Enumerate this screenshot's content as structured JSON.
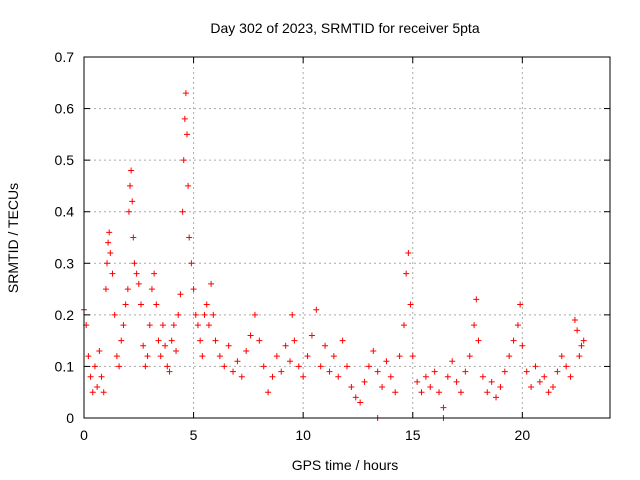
{
  "chart_data": {
    "type": "scatter",
    "title": "Day 302 of 2023, SRMTID for receiver 5pta",
    "xlabel": "GPS time / hours",
    "ylabel": "SRMTID / TECUs",
    "xlim": [
      0,
      24
    ],
    "ylim": [
      0,
      0.7
    ],
    "x_ticks": [
      0,
      5,
      10,
      15,
      20
    ],
    "x_tick_labels": [
      "0",
      "5",
      "10",
      "15",
      "20"
    ],
    "y_ticks": [
      0,
      0.1,
      0.2,
      0.3,
      0.4,
      0.5,
      0.6,
      0.7
    ],
    "y_tick_labels": [
      "0",
      "0.1",
      "0.2",
      "0.3",
      "0.4",
      "0.5",
      "0.6",
      "0.7"
    ],
    "grid": true,
    "marker": "+",
    "color": "#ff0000",
    "series": [
      {
        "name": "SRMTID",
        "points": [
          [
            0.0,
            0.21
          ],
          [
            0.1,
            0.18
          ],
          [
            0.2,
            0.12
          ],
          [
            0.3,
            0.08
          ],
          [
            0.4,
            0.05
          ],
          [
            0.5,
            0.1
          ],
          [
            0.6,
            0.06
          ],
          [
            0.7,
            0.13
          ],
          [
            0.8,
            0.08
          ],
          [
            0.9,
            0.05
          ],
          [
            1.0,
            0.25
          ],
          [
            1.05,
            0.3
          ],
          [
            1.1,
            0.34
          ],
          [
            1.15,
            0.36
          ],
          [
            1.2,
            0.32
          ],
          [
            1.3,
            0.28
          ],
          [
            1.4,
            0.2
          ],
          [
            1.5,
            0.12
          ],
          [
            1.6,
            0.1
          ],
          [
            1.7,
            0.15
          ],
          [
            1.8,
            0.18
          ],
          [
            1.9,
            0.22
          ],
          [
            2.0,
            0.25
          ],
          [
            2.05,
            0.4
          ],
          [
            2.1,
            0.45
          ],
          [
            2.15,
            0.48
          ],
          [
            2.2,
            0.42
          ],
          [
            2.25,
            0.35
          ],
          [
            2.3,
            0.3
          ],
          [
            2.4,
            0.28
          ],
          [
            2.5,
            0.26
          ],
          [
            2.6,
            0.22
          ],
          [
            2.7,
            0.14
          ],
          [
            2.8,
            0.1
          ],
          [
            2.9,
            0.12
          ],
          [
            3.0,
            0.18
          ],
          [
            3.1,
            0.25
          ],
          [
            3.2,
            0.28
          ],
          [
            3.3,
            0.22
          ],
          [
            3.4,
            0.15
          ],
          [
            3.5,
            0.12
          ],
          [
            3.6,
            0.18
          ],
          [
            3.7,
            0.14
          ],
          [
            3.8,
            0.1
          ],
          [
            3.9,
            0.09
          ],
          [
            4.0,
            0.15
          ],
          [
            4.1,
            0.18
          ],
          [
            4.2,
            0.13
          ],
          [
            4.3,
            0.2
          ],
          [
            4.4,
            0.24
          ],
          [
            4.5,
            0.4
          ],
          [
            4.55,
            0.5
          ],
          [
            4.6,
            0.58
          ],
          [
            4.65,
            0.63
          ],
          [
            4.7,
            0.55
          ],
          [
            4.75,
            0.45
          ],
          [
            4.8,
            0.35
          ],
          [
            4.9,
            0.3
          ],
          [
            5.0,
            0.25
          ],
          [
            5.1,
            0.2
          ],
          [
            5.2,
            0.18
          ],
          [
            5.3,
            0.15
          ],
          [
            5.4,
            0.12
          ],
          [
            5.5,
            0.2
          ],
          [
            5.6,
            0.22
          ],
          [
            5.7,
            0.18
          ],
          [
            5.8,
            0.26
          ],
          [
            5.9,
            0.2
          ],
          [
            6.0,
            0.15
          ],
          [
            6.2,
            0.12
          ],
          [
            6.4,
            0.1
          ],
          [
            6.6,
            0.14
          ],
          [
            6.8,
            0.09
          ],
          [
            7.0,
            0.11
          ],
          [
            7.2,
            0.08
          ],
          [
            7.4,
            0.13
          ],
          [
            7.6,
            0.16
          ],
          [
            7.8,
            0.2
          ],
          [
            8.0,
            0.15
          ],
          [
            8.2,
            0.1
          ],
          [
            8.4,
            0.05
          ],
          [
            8.6,
            0.08
          ],
          [
            8.8,
            0.12
          ],
          [
            9.0,
            0.09
          ],
          [
            9.2,
            0.14
          ],
          [
            9.4,
            0.11
          ],
          [
            9.5,
            0.2
          ],
          [
            9.6,
            0.15
          ],
          [
            9.8,
            0.1
          ],
          [
            10.0,
            0.08
          ],
          [
            10.2,
            0.12
          ],
          [
            10.4,
            0.16
          ],
          [
            10.6,
            0.21
          ],
          [
            10.8,
            0.1
          ],
          [
            11.0,
            0.14
          ],
          [
            11.2,
            0.09
          ],
          [
            11.4,
            0.12
          ],
          [
            11.6,
            0.08
          ],
          [
            11.8,
            0.15
          ],
          [
            12.0,
            0.1
          ],
          [
            12.2,
            0.06
          ],
          [
            12.4,
            0.04
          ],
          [
            12.6,
            0.03
          ],
          [
            12.8,
            0.07
          ],
          [
            13.0,
            0.1
          ],
          [
            13.2,
            0.13
          ],
          [
            13.4,
            0.09
          ],
          [
            13.6,
            0.06
          ],
          [
            13.8,
            0.11
          ],
          [
            14.0,
            0.08
          ],
          [
            14.2,
            0.05
          ],
          [
            14.4,
            0.12
          ],
          [
            14.6,
            0.18
          ],
          [
            14.7,
            0.28
          ],
          [
            14.8,
            0.32
          ],
          [
            14.9,
            0.22
          ],
          [
            15.0,
            0.12
          ],
          [
            15.2,
            0.07
          ],
          [
            15.4,
            0.05
          ],
          [
            15.6,
            0.08
          ],
          [
            15.8,
            0.06
          ],
          [
            16.0,
            0.09
          ],
          [
            16.2,
            0.05
          ],
          [
            16.4,
            0.02
          ],
          [
            16.6,
            0.08
          ],
          [
            16.8,
            0.11
          ],
          [
            17.0,
            0.07
          ],
          [
            17.2,
            0.05
          ],
          [
            17.4,
            0.09
          ],
          [
            17.6,
            0.12
          ],
          [
            17.8,
            0.18
          ],
          [
            17.9,
            0.23
          ],
          [
            18.0,
            0.15
          ],
          [
            18.2,
            0.08
          ],
          [
            18.4,
            0.05
          ],
          [
            18.6,
            0.07
          ],
          [
            18.8,
            0.04
          ],
          [
            19.0,
            0.06
          ],
          [
            19.2,
            0.09
          ],
          [
            19.4,
            0.12
          ],
          [
            19.6,
            0.15
          ],
          [
            19.8,
            0.18
          ],
          [
            19.9,
            0.22
          ],
          [
            20.0,
            0.14
          ],
          [
            20.2,
            0.09
          ],
          [
            20.4,
            0.06
          ],
          [
            20.6,
            0.1
          ],
          [
            20.8,
            0.07
          ],
          [
            21.0,
            0.08
          ],
          [
            21.2,
            0.05
          ],
          [
            21.4,
            0.06
          ],
          [
            21.6,
            0.09
          ],
          [
            21.8,
            0.12
          ],
          [
            22.0,
            0.1
          ],
          [
            22.2,
            0.08
          ],
          [
            22.4,
            0.19
          ],
          [
            22.5,
            0.17
          ],
          [
            22.6,
            0.12
          ],
          [
            22.7,
            0.14
          ],
          [
            22.8,
            0.15
          ],
          [
            13.4,
            0.0
          ],
          [
            16.4,
            0.0
          ]
        ]
      }
    ]
  }
}
